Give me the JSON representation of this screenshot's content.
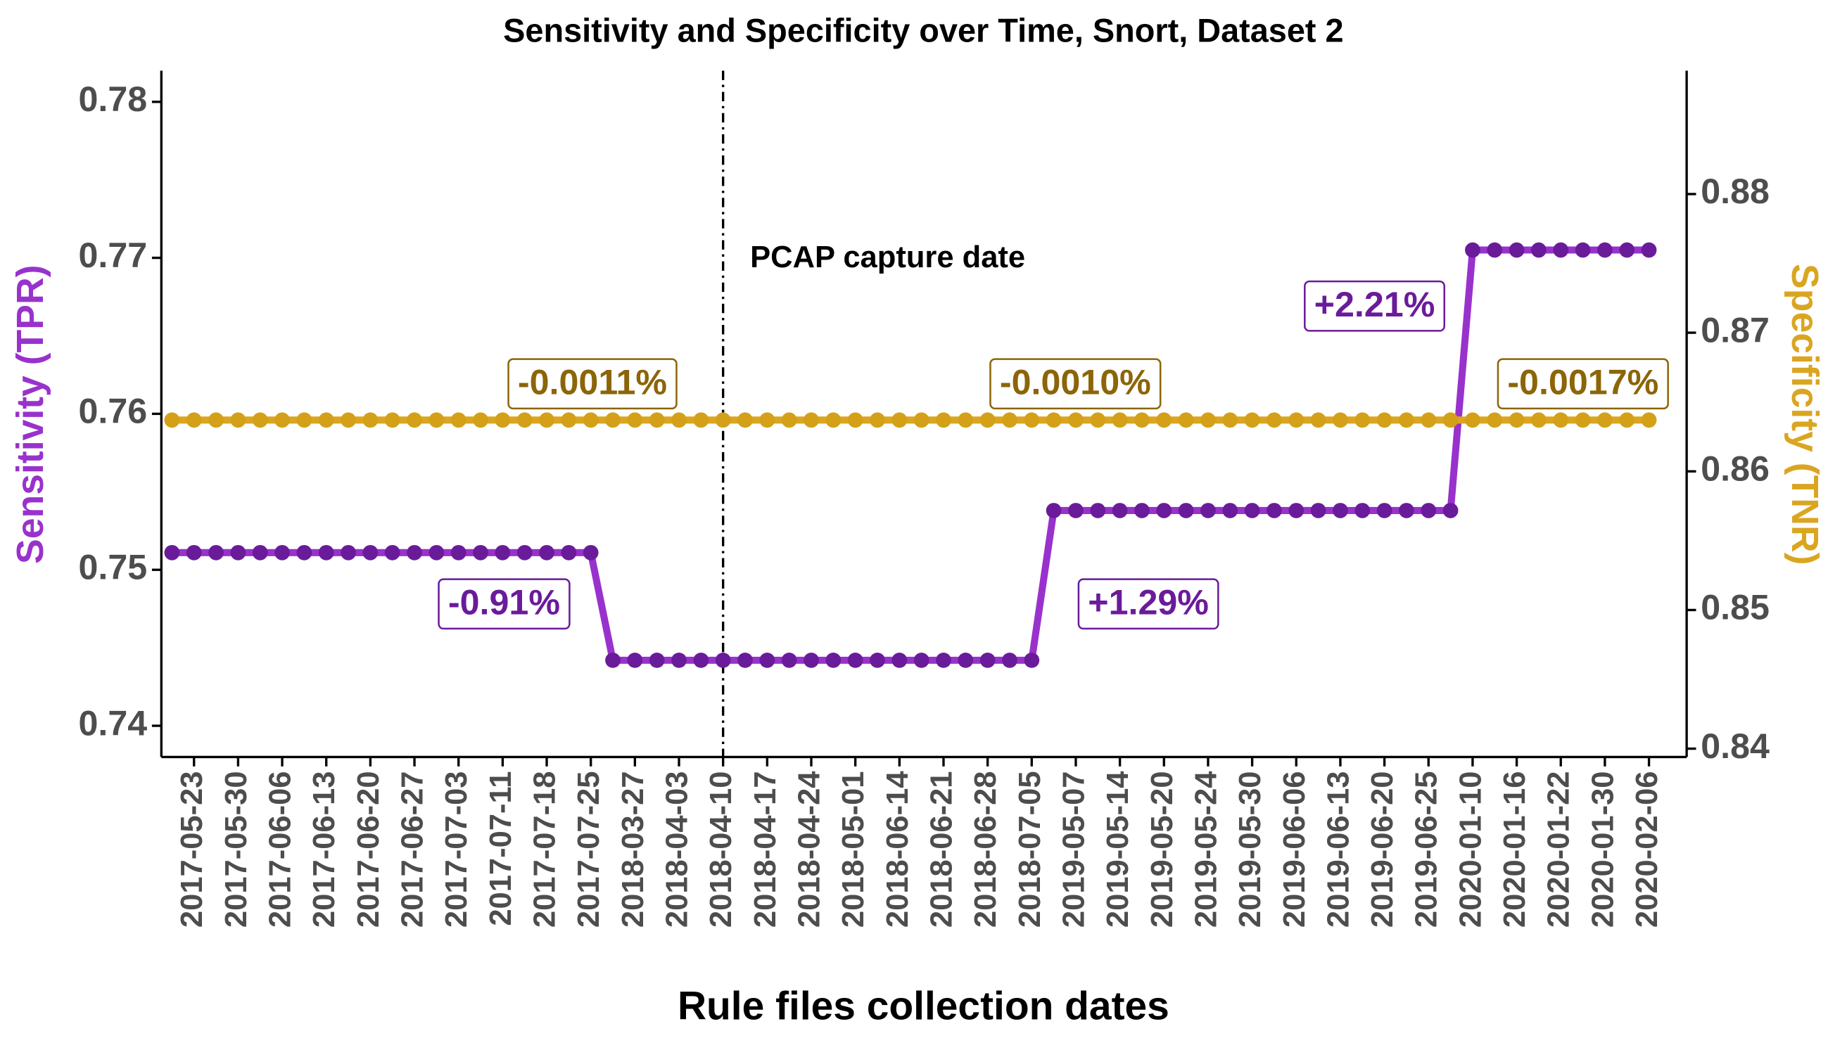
{
  "chart_data": {
    "type": "line",
    "title": "Sensitivity and Specificity over Time, Snort, Dataset 2",
    "xlabel": "Rule files collection dates",
    "ylabel": "Sensitivity (TPR)",
    "y2label": "Specificity (TNR)",
    "categories": [
      null,
      "2017-05-23",
      null,
      "2017-05-30",
      null,
      "2017-06-06",
      null,
      "2017-06-13",
      null,
      "2017-06-20",
      null,
      "2017-06-27",
      null,
      "2017-07-03",
      null,
      "2017-07-11",
      null,
      "2017-07-18",
      null,
      "2017-07-25",
      null,
      "2018-03-27",
      null,
      "2018-04-03",
      null,
      "2018-04-10",
      null,
      "2018-04-17",
      null,
      "2018-04-24",
      null,
      "2018-05-01",
      null,
      "2018-06-14",
      null,
      "2018-06-21",
      null,
      "2018-06-28",
      null,
      "2018-07-05",
      null,
      "2019-05-07",
      null,
      "2019-05-14",
      null,
      "2019-05-20",
      null,
      "2019-05-24",
      null,
      "2019-05-30",
      null,
      "2019-06-06",
      null,
      "2019-06-13",
      null,
      "2019-06-20",
      null,
      "2019-06-25",
      null,
      "2020-01-10",
      null,
      "2020-01-16",
      null,
      "2020-01-22",
      null,
      "2020-01-30",
      null,
      "2020-02-06"
    ],
    "series": [
      {
        "color": "#9932cc",
        "point_color": "#6a1b9a",
        "axis": "y",
        "values": [
          0.7511,
          0.7511,
          0.7511,
          0.7511,
          0.7511,
          0.7511,
          0.7511,
          0.7511,
          0.7511,
          0.7511,
          0.7511,
          0.7511,
          0.7511,
          0.7511,
          0.7511,
          0.7511,
          0.7511,
          0.7511,
          0.7511,
          0.7511,
          0.7442,
          0.7442,
          0.7442,
          0.7442,
          0.7442,
          0.7442,
          0.7442,
          0.7442,
          0.7442,
          0.7442,
          0.7442,
          0.7442,
          0.7442,
          0.7442,
          0.7442,
          0.7442,
          0.7442,
          0.7442,
          0.7442,
          0.7442,
          0.7538,
          0.7538,
          0.7538,
          0.7538,
          0.7538,
          0.7538,
          0.7538,
          0.7538,
          0.7538,
          0.7538,
          0.7538,
          0.7538,
          0.7538,
          0.7538,
          0.7538,
          0.7538,
          0.7538,
          0.7538,
          0.7538,
          0.7705,
          0.7705,
          0.7705,
          0.7705,
          0.7705,
          0.7705,
          0.7705,
          0.7705,
          0.7705
        ],
        "annotations": [
          "-0.91%",
          "+1.29%",
          "+2.21%"
        ]
      },
      {
        "color": "#daa520",
        "point_color": "#d4a017",
        "axis": "y2",
        "values": [
          0.8637,
          0.8637,
          0.8637,
          0.8637,
          0.8637,
          0.8637,
          0.8637,
          0.8637,
          0.8637,
          0.8637,
          0.8637,
          0.8637,
          0.8637,
          0.8637,
          0.8637,
          0.8637,
          0.8637,
          0.8637,
          0.8637,
          0.8637,
          0.8637,
          0.8637,
          0.8637,
          0.8637,
          0.8637,
          0.8637,
          0.8637,
          0.8637,
          0.8637,
          0.8637,
          0.8637,
          0.8637,
          0.8637,
          0.8637,
          0.8637,
          0.8637,
          0.8637,
          0.8637,
          0.8637,
          0.8637,
          0.8637,
          0.8637,
          0.8637,
          0.8637,
          0.8637,
          0.8637,
          0.8637,
          0.8637,
          0.8637,
          0.8637,
          0.8637,
          0.8637,
          0.8637,
          0.8637,
          0.8637,
          0.8637,
          0.8637,
          0.8637,
          0.8637,
          0.8637,
          0.8637,
          0.8637,
          0.8637,
          0.8637,
          0.8637,
          0.8637,
          0.8637,
          0.8637
        ],
        "annotations": [
          "-0.0011%",
          "-0.0010%",
          "-0.0017%"
        ]
      }
    ],
    "ylim": [
      0.738,
      0.782
    ],
    "yticks": [
      0.74,
      0.75,
      0.76,
      0.77,
      0.78
    ],
    "y2lim": [
      0.8394,
      0.8889
    ],
    "y2ticks": [
      0.84,
      0.85,
      0.86,
      0.87,
      0.88
    ],
    "marker_line": {
      "at": "2018-04-10",
      "label": "PCAP capture date"
    }
  }
}
